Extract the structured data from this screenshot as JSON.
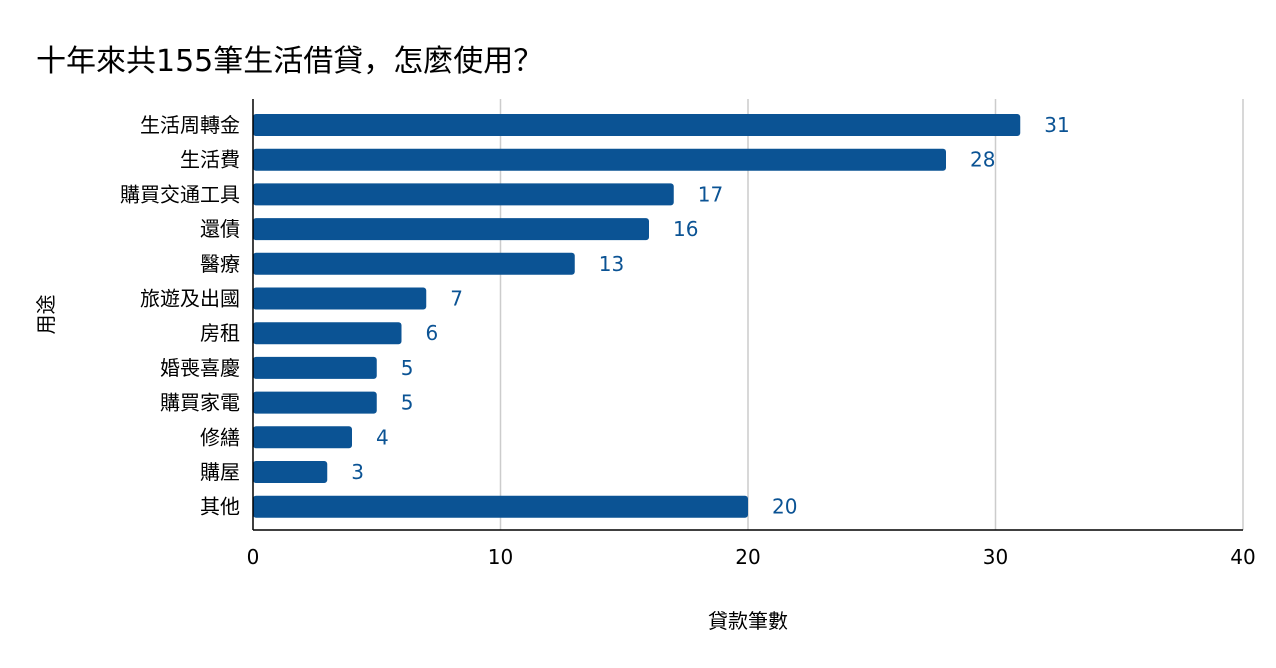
{
  "chart_data": {
    "type": "bar",
    "orientation": "horizontal",
    "title": "十年來共155筆生活借貸，怎麼使用？",
    "xlabel": "貸款筆數",
    "ylabel": "用途",
    "categories": [
      "生活周轉金",
      "生活費",
      "購買交通工具",
      "還債",
      "醫療",
      "旅遊及出國",
      "房租",
      "婚喪喜慶",
      "購買家電",
      "修繕",
      "購屋",
      "其他"
    ],
    "values": [
      31,
      28,
      17,
      16,
      13,
      7,
      6,
      5,
      5,
      4,
      3,
      20
    ],
    "xlim": [
      0,
      40
    ],
    "xticks": [
      0,
      10,
      20,
      30,
      40
    ],
    "grid": "vertical",
    "data_labels": true,
    "colors": {
      "bar": "#0b5394",
      "value_label": "#0b5394",
      "grid": "#cccccc",
      "axis": "#000000"
    }
  }
}
